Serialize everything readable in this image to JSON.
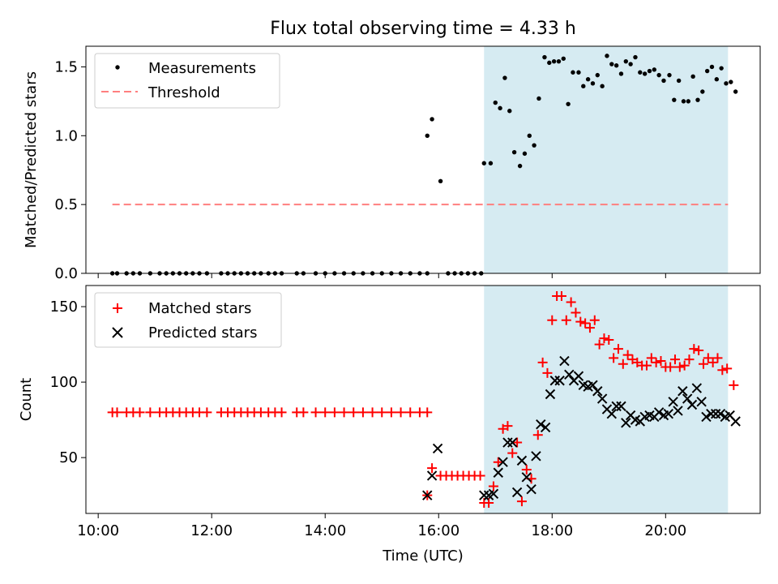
{
  "title": "Flux total observing time = 4.33 h",
  "chart_data": [
    {
      "type": "scatter",
      "ylabel": "Matched/Predicted stars",
      "xlim": [
        "09:47",
        "21:40"
      ],
      "ylim": [
        0,
        1.65
      ],
      "yticks": [
        "0.0",
        "0.5",
        "1.0",
        "1.5"
      ],
      "grid": false,
      "legend_position": "upper-left",
      "shaded_interval": {
        "start": "16:48",
        "end": "21:06",
        "color": "#add8e6"
      },
      "threshold": {
        "name": "Threshold",
        "value": 0.5,
        "x_range": [
          "10:15",
          "21:06"
        ],
        "color": "#ff7f7f"
      },
      "series": [
        {
          "name": "Measurements",
          "color": "#000000",
          "points": [
            [
              "10:15",
              0
            ],
            [
              "10:20",
              0
            ],
            [
              "10:30",
              0
            ],
            [
              "10:37",
              0
            ],
            [
              "10:44",
              0
            ],
            [
              "10:55",
              0
            ],
            [
              "11:05",
              0
            ],
            [
              "11:12",
              0
            ],
            [
              "11:19",
              0
            ],
            [
              "11:26",
              0
            ],
            [
              "11:33",
              0
            ],
            [
              "11:40",
              0
            ],
            [
              "11:47",
              0
            ],
            [
              "11:55",
              0
            ],
            [
              "12:10",
              0
            ],
            [
              "12:17",
              0
            ],
            [
              "12:24",
              0
            ],
            [
              "12:31",
              0
            ],
            [
              "12:38",
              0
            ],
            [
              "12:45",
              0
            ],
            [
              "12:52",
              0
            ],
            [
              "13:00",
              0
            ],
            [
              "13:07",
              0
            ],
            [
              "13:14",
              0
            ],
            [
              "13:30",
              0
            ],
            [
              "13:37",
              0
            ],
            [
              "13:50",
              0
            ],
            [
              "14:00",
              0
            ],
            [
              "14:10",
              0
            ],
            [
              "14:20",
              0
            ],
            [
              "14:30",
              0
            ],
            [
              "14:40",
              0
            ],
            [
              "14:50",
              0
            ],
            [
              "15:00",
              0
            ],
            [
              "15:10",
              0
            ],
            [
              "15:20",
              0
            ],
            [
              "15:30",
              0
            ],
            [
              "15:40",
              0
            ],
            [
              "15:48",
              0
            ],
            [
              "15:48",
              1.0
            ],
            [
              "15:53",
              1.12
            ],
            [
              "16:02",
              0.67
            ],
            [
              "16:10",
              0
            ],
            [
              "16:17",
              0
            ],
            [
              "16:24",
              0
            ],
            [
              "16:31",
              0
            ],
            [
              "16:38",
              0
            ],
            [
              "16:45",
              0
            ],
            [
              "16:48",
              0.8
            ],
            [
              "16:55",
              0.8
            ],
            [
              "17:00",
              1.24
            ],
            [
              "17:05",
              1.2
            ],
            [
              "17:10",
              1.42
            ],
            [
              "17:15",
              1.18
            ],
            [
              "17:20",
              0.88
            ],
            [
              "17:26",
              0.78
            ],
            [
              "17:31",
              0.87
            ],
            [
              "17:36",
              1.0
            ],
            [
              "17:41",
              0.93
            ],
            [
              "17:46",
              1.27
            ],
            [
              "17:52",
              1.57
            ],
            [
              "17:57",
              1.53
            ],
            [
              "18:02",
              1.54
            ],
            [
              "18:07",
              1.54
            ],
            [
              "18:12",
              1.56
            ],
            [
              "18:17",
              1.23
            ],
            [
              "18:22",
              1.46
            ],
            [
              "18:28",
              1.46
            ],
            [
              "18:33",
              1.36
            ],
            [
              "18:38",
              1.41
            ],
            [
              "18:43",
              1.38
            ],
            [
              "18:48",
              1.44
            ],
            [
              "18:53",
              1.36
            ],
            [
              "18:58",
              1.58
            ],
            [
              "19:03",
              1.52
            ],
            [
              "19:08",
              1.51
            ],
            [
              "19:13",
              1.45
            ],
            [
              "19:18",
              1.54
            ],
            [
              "19:23",
              1.52
            ],
            [
              "19:28",
              1.57
            ],
            [
              "19:33",
              1.46
            ],
            [
              "19:38",
              1.45
            ],
            [
              "19:43",
              1.47
            ],
            [
              "19:48",
              1.48
            ],
            [
              "19:53",
              1.44
            ],
            [
              "19:58",
              1.4
            ],
            [
              "20:04",
              1.44
            ],
            [
              "20:09",
              1.26
            ],
            [
              "20:14",
              1.4
            ],
            [
              "20:19",
              1.25
            ],
            [
              "20:24",
              1.25
            ],
            [
              "20:29",
              1.43
            ],
            [
              "20:34",
              1.26
            ],
            [
              "20:39",
              1.32
            ],
            [
              "20:44",
              1.47
            ],
            [
              "20:49",
              1.5
            ],
            [
              "20:54",
              1.41
            ],
            [
              "20:59",
              1.49
            ],
            [
              "21:04",
              1.38
            ],
            [
              "21:09",
              1.39
            ],
            [
              "21:14",
              1.32
            ]
          ]
        }
      ]
    },
    {
      "type": "scatter",
      "xlabel": "Time (UTC)",
      "ylabel": "Count",
      "xlim": [
        "09:47",
        "21:40"
      ],
      "ylim": [
        13,
        164
      ],
      "xticks": [
        "10:00",
        "12:00",
        "14:00",
        "16:00",
        "18:00",
        "20:00"
      ],
      "yticks": [
        "50",
        "100",
        "150"
      ],
      "grid": false,
      "legend_position": "upper-left",
      "shaded_interval": {
        "start": "16:48",
        "end": "21:06",
        "color": "#add8e6"
      },
      "series": [
        {
          "name": "Matched stars",
          "marker": "plus",
          "color": "#ff0000",
          "points": [
            [
              "10:15",
              80
            ],
            [
              "10:20",
              80
            ],
            [
              "10:30",
              80
            ],
            [
              "10:37",
              80
            ],
            [
              "10:44",
              80
            ],
            [
              "10:55",
              80
            ],
            [
              "11:05",
              80
            ],
            [
              "11:12",
              80
            ],
            [
              "11:19",
              80
            ],
            [
              "11:26",
              80
            ],
            [
              "11:33",
              80
            ],
            [
              "11:40",
              80
            ],
            [
              "11:47",
              80
            ],
            [
              "11:55",
              80
            ],
            [
              "12:10",
              80
            ],
            [
              "12:17",
              80
            ],
            [
              "12:24",
              80
            ],
            [
              "12:31",
              80
            ],
            [
              "12:38",
              80
            ],
            [
              "12:45",
              80
            ],
            [
              "12:52",
              80
            ],
            [
              "13:00",
              80
            ],
            [
              "13:07",
              80
            ],
            [
              "13:14",
              80
            ],
            [
              "13:30",
              80
            ],
            [
              "13:37",
              80
            ],
            [
              "13:50",
              80
            ],
            [
              "14:00",
              80
            ],
            [
              "14:10",
              80
            ],
            [
              "14:20",
              80
            ],
            [
              "14:30",
              80
            ],
            [
              "14:40",
              80
            ],
            [
              "14:50",
              80
            ],
            [
              "15:00",
              80
            ],
            [
              "15:10",
              80
            ],
            [
              "15:20",
              80
            ],
            [
              "15:30",
              80
            ],
            [
              "15:40",
              80
            ],
            [
              "15:48",
              80
            ],
            [
              "15:48",
              25
            ],
            [
              "15:53",
              43
            ],
            [
              "16:02",
              38
            ],
            [
              "16:08",
              38
            ],
            [
              "16:14",
              38
            ],
            [
              "16:20",
              38
            ],
            [
              "16:26",
              38
            ],
            [
              "16:32",
              38
            ],
            [
              "16:38",
              38
            ],
            [
              "16:44",
              38
            ],
            [
              "16:48",
              20
            ],
            [
              "16:53",
              20
            ],
            [
              "16:58",
              31
            ],
            [
              "17:03",
              47
            ],
            [
              "17:08",
              69
            ],
            [
              "17:13",
              71
            ],
            [
              "17:18",
              53
            ],
            [
              "17:23",
              60
            ],
            [
              "17:28",
              21
            ],
            [
              "17:33",
              42
            ],
            [
              "17:38",
              36
            ],
            [
              "17:45",
              65
            ],
            [
              "17:50",
              113
            ],
            [
              "17:55",
              106
            ],
            [
              "18:00",
              141
            ],
            [
              "18:05",
              157
            ],
            [
              "18:10",
              157
            ],
            [
              "18:15",
              141
            ],
            [
              "18:20",
              153
            ],
            [
              "18:25",
              146
            ],
            [
              "18:30",
              140
            ],
            [
              "18:35",
              139
            ],
            [
              "18:40",
              136
            ],
            [
              "18:45",
              141
            ],
            [
              "18:50",
              125
            ],
            [
              "18:55",
              129
            ],
            [
              "19:00",
              128
            ],
            [
              "19:05",
              116
            ],
            [
              "19:10",
              122
            ],
            [
              "19:15",
              112
            ],
            [
              "19:20",
              118
            ],
            [
              "19:25",
              115
            ],
            [
              "19:30",
              113
            ],
            [
              "19:35",
              111
            ],
            [
              "19:40",
              111
            ],
            [
              "19:45",
              116
            ],
            [
              "19:50",
              113
            ],
            [
              "19:55",
              114
            ],
            [
              "20:00",
              110
            ],
            [
              "20:05",
              110
            ],
            [
              "20:10",
              115
            ],
            [
              "20:15",
              110
            ],
            [
              "20:20",
              111
            ],
            [
              "20:25",
              115
            ],
            [
              "20:30",
              122
            ],
            [
              "20:35",
              121
            ],
            [
              "20:40",
              112
            ],
            [
              "20:45",
              116
            ],
            [
              "20:50",
              113
            ],
            [
              "20:55",
              116
            ],
            [
              "21:00",
              108
            ],
            [
              "21:05",
              109
            ],
            [
              "21:12",
              98
            ]
          ]
        },
        {
          "name": "Predicted stars",
          "marker": "x",
          "color": "#000000",
          "points": [
            [
              "15:48",
              25
            ],
            [
              "15:53",
              38
            ],
            [
              "15:59",
              56
            ],
            [
              "16:48",
              25
            ],
            [
              "16:53",
              25
            ],
            [
              "16:58",
              26
            ],
            [
              "17:03",
              40
            ],
            [
              "17:08",
              47
            ],
            [
              "17:13",
              60
            ],
            [
              "17:18",
              60
            ],
            [
              "17:23",
              27
            ],
            [
              "17:28",
              48
            ],
            [
              "17:33",
              37
            ],
            [
              "17:38",
              29
            ],
            [
              "17:43",
              51
            ],
            [
              "17:48",
              72
            ],
            [
              "17:53",
              70
            ],
            [
              "17:58",
              92
            ],
            [
              "18:03",
              101
            ],
            [
              "18:08",
              101
            ],
            [
              "18:13",
              114
            ],
            [
              "18:18",
              105
            ],
            [
              "18:23",
              101
            ],
            [
              "18:28",
              104
            ],
            [
              "18:33",
              98
            ],
            [
              "18:38",
              97
            ],
            [
              "18:43",
              98
            ],
            [
              "18:48",
              94
            ],
            [
              "18:53",
              89
            ],
            [
              "18:58",
              82
            ],
            [
              "19:03",
              79
            ],
            [
              "19:08",
              84
            ],
            [
              "19:13",
              84
            ],
            [
              "19:18",
              73
            ],
            [
              "19:23",
              78
            ],
            [
              "19:28",
              75
            ],
            [
              "19:33",
              74
            ],
            [
              "19:38",
              77
            ],
            [
              "19:43",
              78
            ],
            [
              "19:48",
              77
            ],
            [
              "19:53",
              80
            ],
            [
              "19:58",
              78
            ],
            [
              "20:03",
              79
            ],
            [
              "20:08",
              87
            ],
            [
              "20:13",
              81
            ],
            [
              "20:18",
              94
            ],
            [
              "20:23",
              89
            ],
            [
              "20:28",
              85
            ],
            [
              "20:33",
              96
            ],
            [
              "20:38",
              87
            ],
            [
              "20:43",
              77
            ],
            [
              "20:48",
              79
            ],
            [
              "20:53",
              79
            ],
            [
              "20:58",
              79
            ],
            [
              "21:03",
              77
            ],
            [
              "21:08",
              78
            ],
            [
              "21:14",
              74
            ]
          ]
        }
      ]
    }
  ]
}
